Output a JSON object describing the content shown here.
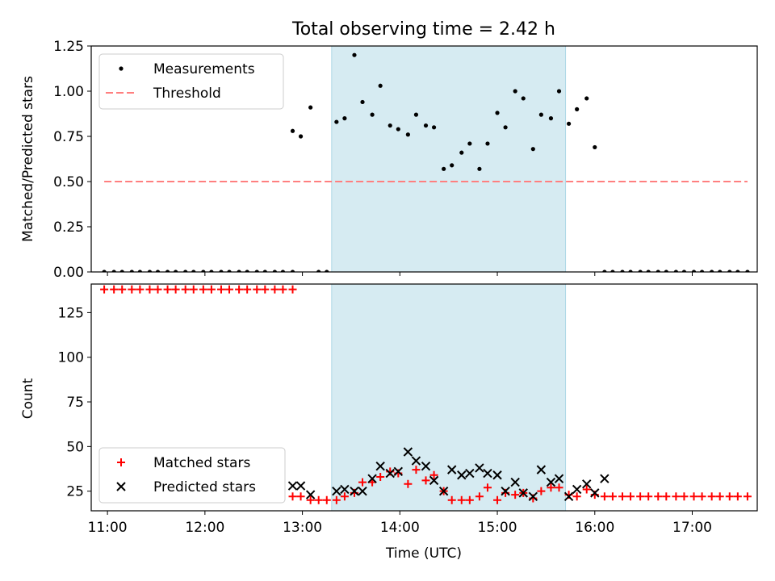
{
  "title": "Total observing time = 2.42 h",
  "chart_data": [
    {
      "type": "scatter",
      "ylabel": "Matched/Predicted stars",
      "xlim": [
        "10:50",
        "17:40"
      ],
      "ylim": [
        0,
        1.25
      ],
      "yticks": [
        "0.00",
        "0.25",
        "0.50",
        "0.75",
        "1.00",
        "1.25"
      ],
      "grid": false,
      "legend_position": "upper-left",
      "shaded_span": [
        "13:18",
        "15:42"
      ],
      "series": [
        {
          "name": "Measurements",
          "marker": "dot",
          "color": "#000000",
          "points": [
            [
              "10:58",
              0
            ],
            [
              "11:04",
              0
            ],
            [
              "11:09",
              0
            ],
            [
              "11:15",
              0
            ],
            [
              "11:20",
              0
            ],
            [
              "11:26",
              0
            ],
            [
              "11:31",
              0
            ],
            [
              "11:37",
              0
            ],
            [
              "11:42",
              0
            ],
            [
              "11:48",
              0
            ],
            [
              "11:53",
              0
            ],
            [
              "11:59",
              0
            ],
            [
              "12:04",
              0
            ],
            [
              "12:10",
              0
            ],
            [
              "12:15",
              0
            ],
            [
              "12:21",
              0
            ],
            [
              "12:26",
              0
            ],
            [
              "12:32",
              0
            ],
            [
              "12:37",
              0
            ],
            [
              "12:43",
              0
            ],
            [
              "12:48",
              0
            ],
            [
              "12:54",
              0
            ],
            [
              "12:54",
              0.78
            ],
            [
              "12:59",
              0.75
            ],
            [
              "13:05",
              0.91
            ],
            [
              "13:10",
              0
            ],
            [
              "13:15",
              0
            ],
            [
              "13:21",
              0.83
            ],
            [
              "13:26",
              0.85
            ],
            [
              "13:32",
              1.2
            ],
            [
              "13:37",
              0.94
            ],
            [
              "13:43",
              0.87
            ],
            [
              "13:48",
              1.03
            ],
            [
              "13:54",
              0.81
            ],
            [
              "13:59",
              0.79
            ],
            [
              "14:05",
              0.76
            ],
            [
              "14:10",
              0.87
            ],
            [
              "14:16",
              0.81
            ],
            [
              "14:21",
              0.8
            ],
            [
              "14:27",
              0.57
            ],
            [
              "14:32",
              0.59
            ],
            [
              "14:38",
              0.66
            ],
            [
              "14:43",
              0.71
            ],
            [
              "14:49",
              0.57
            ],
            [
              "14:54",
              0.71
            ],
            [
              "15:00",
              0.88
            ],
            [
              "15:05",
              0.8
            ],
            [
              "15:11",
              1.0
            ],
            [
              "15:16",
              0.96
            ],
            [
              "15:22",
              0.68
            ],
            [
              "15:27",
              0.87
            ],
            [
              "15:33",
              0.85
            ],
            [
              "15:38",
              1.0
            ],
            [
              "15:44",
              0.82
            ],
            [
              "15:49",
              0.9
            ],
            [
              "15:55",
              0.96
            ],
            [
              "16:00",
              0.69
            ],
            [
              "16:06",
              0
            ],
            [
              "16:11",
              0
            ],
            [
              "16:17",
              0
            ],
            [
              "16:22",
              0
            ],
            [
              "16:28",
              0
            ],
            [
              "16:33",
              0
            ],
            [
              "16:39",
              0
            ],
            [
              "16:44",
              0
            ],
            [
              "16:50",
              0
            ],
            [
              "16:55",
              0
            ],
            [
              "17:01",
              0
            ],
            [
              "17:06",
              0
            ],
            [
              "17:12",
              0
            ],
            [
              "17:17",
              0
            ],
            [
              "17:23",
              0
            ],
            [
              "17:28",
              0
            ],
            [
              "17:34",
              0
            ]
          ]
        },
        {
          "name": "Threshold",
          "line_style": "dashed",
          "color": "#ff7f7f",
          "points": [
            [
              "10:58",
              0.5
            ],
            [
              "17:34",
              0.5
            ]
          ]
        }
      ]
    },
    {
      "type": "scatter",
      "xlabel": "Time (UTC)",
      "ylabel": "Count",
      "xlim": [
        "10:50",
        "17:40"
      ],
      "ylim": [
        14,
        141
      ],
      "xticks": [
        "11:00",
        "12:00",
        "13:00",
        "14:00",
        "15:00",
        "16:00",
        "17:00"
      ],
      "yticks": [
        "25",
        "50",
        "75",
        "100",
        "125"
      ],
      "grid": false,
      "legend_position": "lower-left",
      "shaded_span": [
        "13:18",
        "15:42"
      ],
      "series": [
        {
          "name": "Matched stars",
          "marker": "plus",
          "color": "#ff0000",
          "points": [
            [
              "10:58",
              138
            ],
            [
              "11:04",
              138
            ],
            [
              "11:09",
              138
            ],
            [
              "11:15",
              138
            ],
            [
              "11:20",
              138
            ],
            [
              "11:26",
              138
            ],
            [
              "11:31",
              138
            ],
            [
              "11:37",
              138
            ],
            [
              "11:42",
              138
            ],
            [
              "11:48",
              138
            ],
            [
              "11:53",
              138
            ],
            [
              "11:59",
              138
            ],
            [
              "12:04",
              138
            ],
            [
              "12:10",
              138
            ],
            [
              "12:15",
              138
            ],
            [
              "12:21",
              138
            ],
            [
              "12:26",
              138
            ],
            [
              "12:32",
              138
            ],
            [
              "12:37",
              138
            ],
            [
              "12:43",
              138
            ],
            [
              "12:48",
              138
            ],
            [
              "12:54",
              138
            ],
            [
              "12:54",
              22
            ],
            [
              "12:59",
              22
            ],
            [
              "13:05",
              20
            ],
            [
              "13:10",
              20
            ],
            [
              "13:15",
              20
            ],
            [
              "13:21",
              20
            ],
            [
              "13:26",
              22
            ],
            [
              "13:32",
              24
            ],
            [
              "13:37",
              30
            ],
            [
              "13:43",
              30
            ],
            [
              "13:48",
              33
            ],
            [
              "13:54",
              36
            ],
            [
              "13:59",
              35
            ],
            [
              "14:05",
              29
            ],
            [
              "14:10",
              37
            ],
            [
              "14:16",
              31
            ],
            [
              "14:21",
              34
            ],
            [
              "14:27",
              25
            ],
            [
              "14:32",
              20
            ],
            [
              "14:38",
              20
            ],
            [
              "14:43",
              20
            ],
            [
              "14:49",
              22
            ],
            [
              "14:54",
              27
            ],
            [
              "15:00",
              20
            ],
            [
              "15:05",
              24
            ],
            [
              "15:11",
              23
            ],
            [
              "15:16",
              24
            ],
            [
              "15:22",
              21
            ],
            [
              "15:27",
              25
            ],
            [
              "15:33",
              27
            ],
            [
              "15:38",
              27
            ],
            [
              "15:44",
              23
            ],
            [
              "15:49",
              22
            ],
            [
              "15:55",
              26
            ],
            [
              "16:00",
              23
            ],
            [
              "16:06",
              22
            ],
            [
              "16:11",
              22
            ],
            [
              "16:17",
              22
            ],
            [
              "16:22",
              22
            ],
            [
              "16:28",
              22
            ],
            [
              "16:33",
              22
            ],
            [
              "16:39",
              22
            ],
            [
              "16:44",
              22
            ],
            [
              "16:50",
              22
            ],
            [
              "16:55",
              22
            ],
            [
              "17:01",
              22
            ],
            [
              "17:06",
              22
            ],
            [
              "17:12",
              22
            ],
            [
              "17:17",
              22
            ],
            [
              "17:23",
              22
            ],
            [
              "17:28",
              22
            ],
            [
              "17:34",
              22
            ]
          ]
        },
        {
          "name": "Predicted stars",
          "marker": "x",
          "color": "#000000",
          "points": [
            [
              "12:54",
              28
            ],
            [
              "12:59",
              28
            ],
            [
              "13:05",
              23
            ],
            [
              "13:21",
              25
            ],
            [
              "13:26",
              26
            ],
            [
              "13:32",
              25
            ],
            [
              "13:37",
              25
            ],
            [
              "13:43",
              32
            ],
            [
              "13:48",
              39
            ],
            [
              "13:54",
              35
            ],
            [
              "13:59",
              36
            ],
            [
              "14:05",
              47
            ],
            [
              "14:10",
              42
            ],
            [
              "14:16",
              39
            ],
            [
              "14:21",
              31
            ],
            [
              "14:27",
              25
            ],
            [
              "14:32",
              37
            ],
            [
              "14:38",
              34
            ],
            [
              "14:43",
              35
            ],
            [
              "14:49",
              38
            ],
            [
              "14:54",
              35
            ],
            [
              "15:00",
              34
            ],
            [
              "15:05",
              25
            ],
            [
              "15:11",
              30
            ],
            [
              "15:16",
              24
            ],
            [
              "15:22",
              22
            ],
            [
              "15:27",
              37
            ],
            [
              "15:33",
              30
            ],
            [
              "15:38",
              32
            ],
            [
              "15:44",
              22
            ],
            [
              "15:49",
              26
            ],
            [
              "15:55",
              29
            ],
            [
              "16:00",
              24
            ],
            [
              "16:06",
              32
            ]
          ]
        }
      ]
    }
  ]
}
